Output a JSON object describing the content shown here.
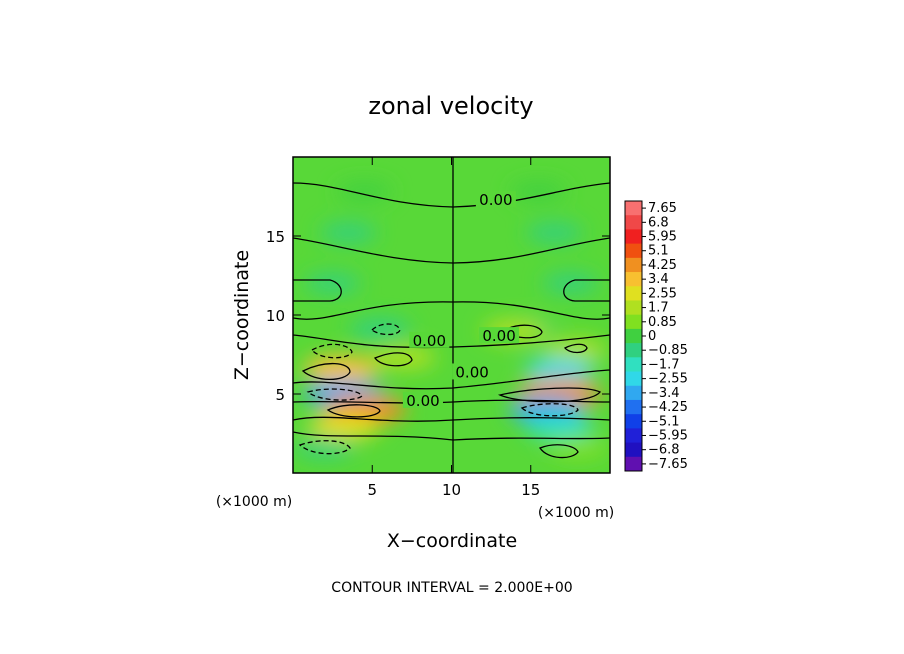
{
  "chart_data": {
    "type": "heatmap",
    "title": "zonal velocity",
    "xlabel": "X−coordinate",
    "ylabel": "Z−coordinate",
    "x_unit": "(×1000 m)",
    "z_unit": "(×1000 m)",
    "xlim": [
      0,
      20
    ],
    "ylim": [
      0,
      20
    ],
    "x_ticks": [
      {
        "value": 5,
        "label": "5"
      },
      {
        "value": 10,
        "label": "10"
      },
      {
        "value": 15,
        "label": "15"
      }
    ],
    "y_ticks": [
      {
        "value": 5,
        "label": "5"
      },
      {
        "value": 10,
        "label": "10"
      },
      {
        "value": 15,
        "label": "15"
      }
    ],
    "colorbar": {
      "labels": [
        "7.65",
        "6.8",
        "5.95",
        "5.1",
        "4.25",
        "3.4",
        "2.55",
        "1.7",
        "0.85",
        "0",
        "−0.85",
        "−1.7",
        "−2.55",
        "−3.4",
        "−4.25",
        "−5.1",
        "−5.95",
        "−6.8",
        "−7.65"
      ],
      "colors": [
        "#f87070",
        "#f04848",
        "#f02020",
        "#f05010",
        "#f09020",
        "#f8c030",
        "#e0e020",
        "#b0e020",
        "#80e020",
        "#40d040",
        "#30d080",
        "#30e0c0",
        "#30d8e8",
        "#30a8f0",
        "#2070f0",
        "#1040e8",
        "#2020d8",
        "#2010c0",
        "#6010b0"
      ]
    },
    "contour_labels": [
      {
        "x": 12.8,
        "z": 17.2,
        "text": "0.00"
      },
      {
        "x": 8.6,
        "z": 8.3,
        "text": "0.00"
      },
      {
        "x": 13.0,
        "z": 8.6,
        "text": "0.00"
      },
      {
        "x": 11.3,
        "z": 6.3,
        "text": "0.00"
      },
      {
        "x": 8.2,
        "z": 4.5,
        "text": "0.00"
      }
    ],
    "cells": [
      {
        "x": 4.5,
        "z": 17.8,
        "v": -0.4
      },
      {
        "x": 15.5,
        "z": 17.8,
        "v": -0.4
      },
      {
        "x": 3.5,
        "z": 15.2,
        "v": -0.6
      },
      {
        "x": 16.5,
        "z": 15.2,
        "v": -0.6
      },
      {
        "x": 2.5,
        "z": 12.0,
        "v": -0.5
      },
      {
        "x": 17.5,
        "z": 12.0,
        "v": -0.5
      },
      {
        "x": 5.5,
        "z": 9.1,
        "v": -1.2
      },
      {
        "x": 14.5,
        "z": 9.1,
        "v": -1.2
      },
      {
        "x": 14.0,
        "z": 9.0,
        "v": 1.6
      },
      {
        "x": 17.8,
        "z": 7.8,
        "v": 1.5
      },
      {
        "x": 3.0,
        "z": 6.6,
        "v": 3.0
      },
      {
        "x": 7.0,
        "z": 7.3,
        "v": 1.6
      },
      {
        "x": 16.8,
        "z": 6.5,
        "v": -2.2
      },
      {
        "x": 3.2,
        "z": 5.0,
        "v": -3.4
      },
      {
        "x": 16.8,
        "z": 5.0,
        "v": 4.0
      },
      {
        "x": 4.5,
        "z": 4.0,
        "v": 4.6
      },
      {
        "x": 16.0,
        "z": 4.0,
        "v": -3.0
      },
      {
        "x": 3.2,
        "z": 2.9,
        "v": 2.4
      },
      {
        "x": 16.8,
        "z": 2.9,
        "v": -2.1
      },
      {
        "x": 2.0,
        "z": 1.6,
        "v": -0.9
      },
      {
        "x": 18.0,
        "z": 1.6,
        "v": 1.1
      }
    ]
  },
  "footer_text": "CONTOUR INTERVAL = 2.000E+00",
  "colors": {
    "background": "#ffffff",
    "field_base": "#58d838",
    "contour": "#000000"
  }
}
